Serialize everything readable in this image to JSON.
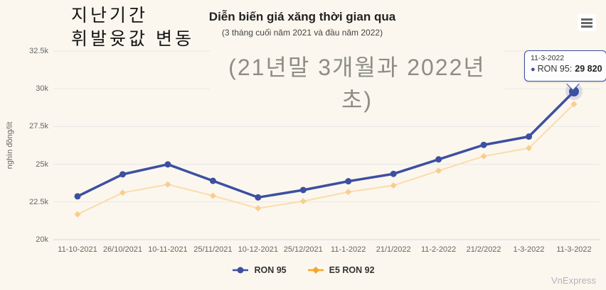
{
  "header": {
    "overlay_title_line1": "지난기간",
    "overlay_title_line2": "휘발윳값 변동",
    "title": "Diễn biến giá xăng thời gian qua",
    "subtitle": "(3 tháng cuối năm 2021 và đầu năm 2022)",
    "overlay_subtitle": "(21년말 3개월과 2022년 초)"
  },
  "menu": {
    "icon": "hamburger-icon"
  },
  "chart_data": {
    "type": "line",
    "title": "Diễn biến giá xăng thời gian qua",
    "subtitle": "(3 tháng cuối năm 2021 và đầu năm 2022)",
    "xlabel": "",
    "ylabel": "nghìn đồng/lít",
    "ylim": [
      20000,
      32500
    ],
    "grid": true,
    "legend_position": "bottom",
    "y_ticks": [
      {
        "label": "20k",
        "value": 20000
      },
      {
        "label": "22.5k",
        "value": 22500
      },
      {
        "label": "25k",
        "value": 25000
      },
      {
        "label": "27.5k",
        "value": 27500
      },
      {
        "label": "30k",
        "value": 30000
      },
      {
        "label": "32.5k",
        "value": 32500
      }
    ],
    "categories": [
      "11-10-2021",
      "26/10/2021",
      "10-11-2021",
      "25/11/2021",
      "10-12-2021",
      "25/12/2021",
      "11-1-2022",
      "21/1/2022",
      "11-2-2022",
      "21/2/2022",
      "1-3-2022",
      "11-3-2022"
    ],
    "series": [
      {
        "name": "E5 RON 92",
        "marker": "diamond",
        "color": "#f7a42a",
        "line_color": "#fbdcab",
        "marker_color": "#f8cd8e",
        "values": [
          21680,
          23110,
          23660,
          22910,
          22080,
          22550,
          23160,
          23590,
          24570,
          25530,
          26070,
          28980
        ]
      },
      {
        "name": "RON 95",
        "marker": "circle",
        "color": "#3d4fa1",
        "line_color": "#3d4fa1",
        "marker_color": "#3d4fa1",
        "values": [
          22870,
          24330,
          24990,
          23900,
          22800,
          23290,
          23870,
          24360,
          25320,
          26280,
          26830,
          29820
        ]
      }
    ],
    "highlight_point": {
      "series": "RON 95",
      "index": 11
    }
  },
  "tooltip": {
    "date": "11-3-2022",
    "bullet": "●",
    "label": "RON 95:",
    "value": "29 820"
  },
  "watermark": {
    "text": "VnExpress"
  },
  "colors": {
    "background": "#fbf7ee",
    "grid": "#e7e7e7",
    "axis_line": "#ccd6eb",
    "ron95_blue": "#3d4fa1",
    "e5_orange": "#f7a42a",
    "tooltip_border": "#3d4fa1",
    "text_gray": "#666666"
  }
}
